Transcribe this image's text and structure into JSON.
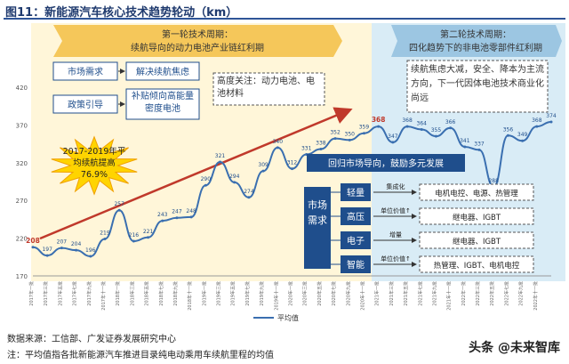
{
  "figure_title": "图11：新能源汽车核心技术趋势轮动（km）",
  "phase1": {
    "title": "第一轮技术周期：",
    "subtitle": "续航导向的动力电池产业链红利期"
  },
  "phase2": {
    "title": "第二轮技术周期：",
    "subtitle": "四化趋势下的非电池零部件红利期"
  },
  "boxes": {
    "market_demand": "市场需求",
    "range_anxiety": "解决续航焦虑",
    "policy": "政策引导",
    "subsidy": "补贴倾向高能量密度电池",
    "focus": "高度关注：动力电池、电池材料",
    "phase2_text": "续航焦虑大减，安全、降本为主流方向，下一代因体电池技术商业化尚远",
    "star": "2017-2019年平均续航提高76.9%",
    "return_market": "回归市场导向，鼓励多元发展",
    "market_vertical": "市场需求"
  },
  "trends": [
    {
      "label": "轻量",
      "driver": "集成化",
      "parts": "电机电控、电源、热管理"
    },
    {
      "label": "高压",
      "driver": "单位价值↑",
      "parts": "继电器、IGBT"
    },
    {
      "label": "电子",
      "driver": "增量",
      "parts": "继电器、IGBT"
    },
    {
      "label": "智能",
      "driver": "单位价值↑",
      "parts": "热管理、IGBT、电机电控"
    }
  ],
  "source": "数据来源：工信部、广发证券发展研究中心",
  "note": "注：平均值指各批新能源汽车推进目录纯电动乘用车续航里程的均值",
  "watermark": "头条 @未来智库",
  "colors": {
    "phase1_bg": "#fde9a8",
    "phase2_bg": "#d9ecf6",
    "line": "#3a6fb0",
    "arrow": "#c0392b",
    "navy": "#1f4e8c"
  },
  "chart_data": {
    "type": "line",
    "ylim": [
      170,
      420
    ],
    "yticks": [
      170,
      220,
      270,
      320,
      370,
      420
    ],
    "legend": "平均值",
    "series": [
      {
        "name": "平均值",
        "points": [
          [
            0,
            208
          ],
          [
            2,
            197
          ],
          [
            4,
            207
          ],
          [
            6,
            204
          ],
          [
            8,
            196
          ],
          [
            10,
            219
          ],
          [
            12,
            257
          ],
          [
            14,
            216
          ],
          [
            16,
            221
          ],
          [
            18,
            243
          ],
          [
            20,
            247
          ],
          [
            22,
            248
          ],
          [
            24,
            290
          ],
          [
            26,
            321
          ],
          [
            28,
            294
          ],
          [
            30,
            274
          ],
          [
            32,
            309
          ],
          [
            34,
            340
          ],
          [
            36,
            312
          ],
          [
            38,
            331
          ],
          [
            40,
            338
          ],
          [
            42,
            352
          ],
          [
            44,
            350
          ],
          [
            46,
            359
          ],
          [
            48,
            368
          ],
          [
            50,
            347
          ],
          [
            52,
            368
          ],
          [
            54,
            364
          ],
          [
            56,
            355
          ],
          [
            58,
            366
          ],
          [
            60,
            341
          ],
          [
            62,
            337
          ],
          [
            64,
            288
          ],
          [
            66,
            356
          ],
          [
            68,
            349
          ],
          [
            70,
            368
          ],
          [
            72,
            374
          ]
        ]
      }
    ],
    "x_tick_labels": [
      "2017年一批",
      "2017年三批",
      "2017年五批",
      "2017年七批",
      "2017年九批",
      "2017年十一批",
      "2018年一批",
      "2018年三批",
      "2018年五批",
      "2018年七批",
      "2018年九批",
      "2018年十一批",
      "2019年一批",
      "2019年三批",
      "2019年五批",
      "2019年七批",
      "2019年九批",
      "2019年十一批",
      "2020年一批",
      "2020年三批",
      "2020年五批",
      "2020年七批",
      "2020年九批",
      "2020年十一批",
      "2021年一批",
      "2021年三批",
      "2021年五批",
      "2021年七批",
      "2021年九批",
      "2021年十一批",
      "2022年一批",
      "2022年三批",
      "2022年五批",
      "2022年七批",
      "2022年九批",
      "2022年十一批"
    ]
  }
}
